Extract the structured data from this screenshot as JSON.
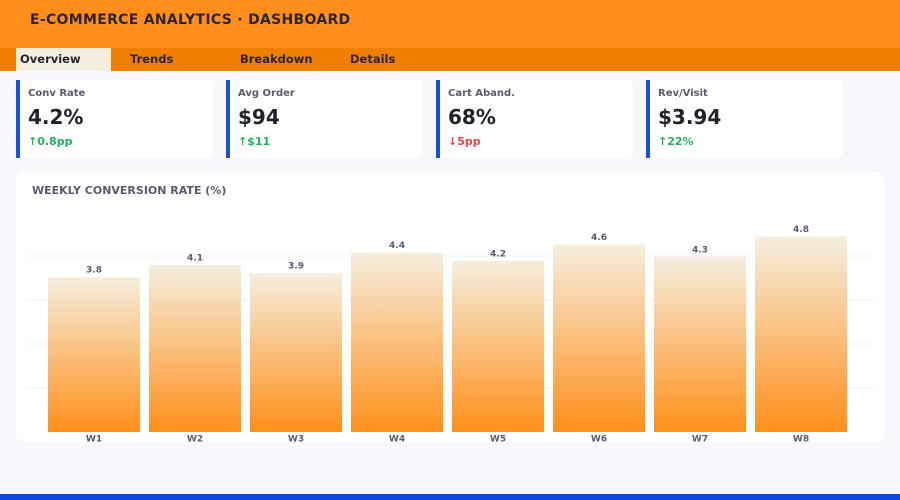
{
  "header": {
    "title": "E-COMMERCE ANALYTICS · DASHBOARD"
  },
  "tabs": {
    "items": [
      "Overview",
      "Trends",
      "Breakdown",
      "Details"
    ],
    "active": 0
  },
  "kpis": [
    {
      "label": "Conv Rate",
      "value": "4.2%",
      "delta": "↑0.8pp",
      "trend": "up"
    },
    {
      "label": "Avg Order",
      "value": "$94",
      "delta": "↑$11",
      "trend": "up"
    },
    {
      "label": "Cart Aband.",
      "value": "68%",
      "delta": "↓5pp",
      "trend": "down"
    },
    {
      "label": "Rev/Visit",
      "value": "$3.94",
      "delta": "↑22%",
      "trend": "up"
    }
  ],
  "chart_data": {
    "type": "bar",
    "title": "WEEKLY CONVERSION RATE (%)",
    "categories": [
      "W1",
      "W2",
      "W3",
      "W4",
      "W5",
      "W6",
      "W7",
      "W8"
    ],
    "values": [
      3.8,
      4.1,
      3.9,
      4.4,
      4.2,
      4.6,
      4.3,
      4.8
    ],
    "color": "#ff8f1a",
    "ylim": [
      0,
      5.4
    ],
    "gridlines": [
      1.08,
      2.16,
      3.24,
      4.32
    ],
    "grid": true
  }
}
